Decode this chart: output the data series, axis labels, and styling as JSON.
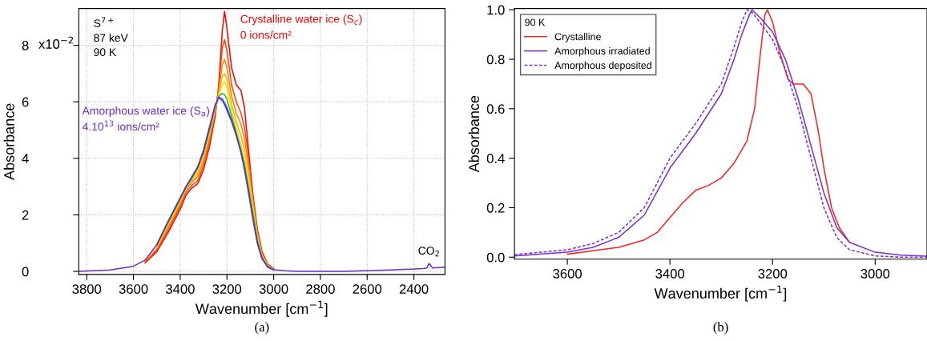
{
  "chart_data": [
    {
      "type": "line",
      "xlabel": "Wavenumber [cm$^{−1}$]",
      "ylabel": "Absorbance",
      "x": [
        3834,
        3700,
        3600,
        3550,
        3500,
        3450,
        3400,
        3375,
        3350,
        3325,
        3300,
        3275,
        3250,
        3235,
        3220,
        3210,
        3200,
        3180,
        3160,
        3140,
        3125,
        3110,
        3090,
        3070,
        3050,
        3025,
        3000,
        2950,
        2900,
        2700,
        2500,
        2360,
        2345,
        2335,
        2320,
        2267
      ],
      "series": [
        {
          "color": "#ff0000",
          "values": [
            null,
            null,
            null,
            0.3,
            0.7,
            1.4,
            2.2,
            2.7,
            2.95,
            3.1,
            3.6,
            4.4,
            5.5,
            6.6,
            8.5,
            9.2,
            8.6,
            7.2,
            6.6,
            6.4,
            5.8,
            4.5,
            2.8,
            1.5,
            0.7,
            0.25,
            0.1,
            null,
            null,
            null,
            null,
            null,
            null,
            null,
            null,
            null
          ]
        },
        {
          "color": "#ff4400",
          "values": [
            null,
            null,
            null,
            0.33,
            0.75,
            1.5,
            2.3,
            2.8,
            3.05,
            3.2,
            3.75,
            4.6,
            5.6,
            6.5,
            7.9,
            8.2,
            7.8,
            6.6,
            6.0,
            5.6,
            5.1,
            4.2,
            2.7,
            1.4,
            0.65,
            0.23,
            0.1,
            null,
            null,
            null,
            null,
            null,
            null,
            null,
            null,
            null
          ]
        },
        {
          "color": "#ff8000",
          "values": [
            null,
            null,
            null,
            0.35,
            0.8,
            1.6,
            2.4,
            2.9,
            3.15,
            3.35,
            3.9,
            4.7,
            5.7,
            6.4,
            7.3,
            7.5,
            7.2,
            6.2,
            5.6,
            5.2,
            4.7,
            3.9,
            2.6,
            1.35,
            0.6,
            0.22,
            0.09,
            null,
            null,
            null,
            null,
            null,
            null,
            null,
            null,
            null
          ]
        },
        {
          "color": "#ffb000",
          "values": [
            null,
            null,
            null,
            null,
            0.85,
            1.65,
            2.45,
            2.9,
            3.2,
            3.45,
            4.0,
            4.8,
            5.75,
            6.3,
            6.9,
            7.0,
            6.8,
            5.9,
            5.3,
            4.8,
            4.3,
            3.6,
            2.4,
            1.3,
            0.58,
            0.2,
            0.08,
            null,
            null,
            null,
            null,
            null,
            null,
            null,
            null,
            null
          ]
        },
        {
          "color": "#f0e000",
          "values": [
            null,
            null,
            null,
            null,
            0.88,
            1.7,
            2.5,
            2.95,
            3.25,
            3.55,
            4.1,
            4.9,
            5.8,
            6.25,
            6.6,
            6.7,
            6.5,
            5.7,
            5.1,
            4.5,
            4.0,
            3.4,
            2.3,
            1.2,
            0.55,
            0.19,
            0.08,
            null,
            null,
            null,
            null,
            null,
            null,
            null,
            null,
            null
          ]
        },
        {
          "color": "#20c020",
          "values": [
            null,
            null,
            null,
            null,
            0.92,
            1.75,
            2.55,
            2.98,
            3.3,
            3.65,
            4.2,
            5.0,
            5.85,
            6.2,
            6.3,
            6.25,
            6.1,
            5.5,
            4.9,
            4.3,
            3.8,
            3.1,
            2.1,
            1.1,
            0.5,
            0.17,
            0.07,
            null,
            null,
            null,
            null,
            null,
            null,
            null,
            null,
            null
          ]
        },
        {
          "color": "#2050ff",
          "values": [
            null,
            null,
            null,
            null,
            0.94,
            1.8,
            2.6,
            3.0,
            3.33,
            3.68,
            4.25,
            5.05,
            5.88,
            6.17,
            6.1,
            5.95,
            5.8,
            5.35,
            4.85,
            4.25,
            3.65,
            2.95,
            1.95,
            1.02,
            0.46,
            0.15,
            0.06,
            null,
            null,
            null,
            null,
            null,
            null,
            null,
            null,
            null
          ]
        },
        {
          "color": "#6a2cc8",
          "values": [
            0,
            0.05,
            0.18,
            0.4,
            0.95,
            1.8,
            2.6,
            3.0,
            3.35,
            3.7,
            4.3,
            5.1,
            5.9,
            6.15,
            6.05,
            5.9,
            5.7,
            5.3,
            4.8,
            4.2,
            3.6,
            2.9,
            1.9,
            1.0,
            0.45,
            0.15,
            0.06,
            0.02,
            0,
            0,
            0.05,
            0.1,
            0.12,
            0.28,
            0.12,
            0.15
          ]
        }
      ],
      "xlim": [
        3834,
        2267
      ],
      "ylim": [
        -0.11,
        9.3
      ],
      "xticks": [
        3800,
        3600,
        3400,
        3200,
        3000,
        2800,
        2600,
        2400
      ],
      "yticks": [
        0,
        2,
        4,
        6,
        8
      ],
      "grid": true,
      "legend": false,
      "annotations": [
        "S$^{7+}$\n87 keV\n90 K",
        {
          "text": "Crystalline water ice (S$_{c}$)",
          "x": 3210,
          "y": 9.2
        },
        "0 ions/cm²",
        {
          "text": "Amorphous water ice (S$_{a}$)",
          "x": 3235,
          "y": 6.15
        },
        "4.10$^{13}$ ions/cm²",
        {
          "text": "CO$_{2}$",
          "x": 2335,
          "y": 0.28
        },
        "x10$^{−2}$",
        "(a)"
      ]
    },
    {
      "type": "line",
      "xlabel": "Wavenumber [cm$^{−1}$]",
      "ylabel": "Absorbance",
      "legend_title": "90 K",
      "series": [
        {
          "name": "Crystalline",
          "color": "#ff2020",
          "line_style": "solid",
          "x": [
            3600,
            3500,
            3450,
            3425,
            3400,
            3375,
            3350,
            3325,
            3300,
            3275,
            3250,
            3235,
            3225,
            3215,
            3210,
            3200,
            3185,
            3170,
            3160,
            3140,
            3125,
            3110,
            3100,
            3085,
            3070,
            3050
          ],
          "values": [
            0.012,
            0.04,
            0.07,
            0.1,
            0.16,
            0.22,
            0.27,
            0.29,
            0.32,
            0.38,
            0.47,
            0.6,
            0.8,
            0.98,
            1.0,
            0.95,
            0.82,
            0.72,
            0.7,
            0.7,
            0.66,
            0.5,
            0.36,
            0.2,
            0.12,
            0.06
          ]
        },
        {
          "name": "Amorphous irradiated",
          "color": "#7a30d0",
          "line_style": "solid",
          "x": [
            3703,
            3600,
            3550,
            3500,
            3450,
            3400,
            3350,
            3300,
            3275,
            3260,
            3245,
            3240,
            3225,
            3200,
            3175,
            3150,
            3125,
            3100,
            3075,
            3050,
            3000,
            2950,
            2899
          ],
          "values": [
            0.005,
            0.02,
            0.04,
            0.08,
            0.17,
            0.36,
            0.5,
            0.66,
            0.8,
            0.9,
            0.98,
            1.0,
            0.97,
            0.91,
            0.8,
            0.64,
            0.45,
            0.26,
            0.12,
            0.06,
            0.02,
            0.008,
            0.004
          ]
        },
        {
          "name": "Amorphous deposited",
          "color": "#7a30d0",
          "line_style": "dashed",
          "x": [
            3703,
            3600,
            3550,
            3500,
            3450,
            3400,
            3350,
            3300,
            3275,
            3260,
            3250,
            3240,
            3225,
            3200,
            3175,
            3150,
            3125,
            3100,
            3075,
            3050,
            3000,
            2950,
            2899
          ],
          "values": [
            0.01,
            0.03,
            0.055,
            0.1,
            0.2,
            0.4,
            0.54,
            0.7,
            0.85,
            0.95,
            1.0,
            0.99,
            0.95,
            0.88,
            0.76,
            0.6,
            0.4,
            0.2,
            0.08,
            0.03,
            0.005,
            0.0,
            0.0
          ]
        }
      ],
      "xlim": [
        3703,
        2899
      ],
      "ylim": [
        -0.008,
        1.005
      ],
      "xticks": [
        3600,
        3400,
        3200,
        3000
      ],
      "yticks": [
        {
          "value": 0,
          "label": "0.0"
        },
        {
          "value": 0.2,
          "label": "0.2"
        },
        {
          "value": 0.4,
          "label": "0.4"
        },
        {
          "value": 0.6,
          "label": "0.6"
        },
        {
          "value": 0.8,
          "label": "0.8"
        },
        {
          "value": 1.0,
          "label": "1.0"
        }
      ],
      "grid": false,
      "legend": "top left",
      "annotations": [
        "(b)"
      ]
    }
  ]
}
